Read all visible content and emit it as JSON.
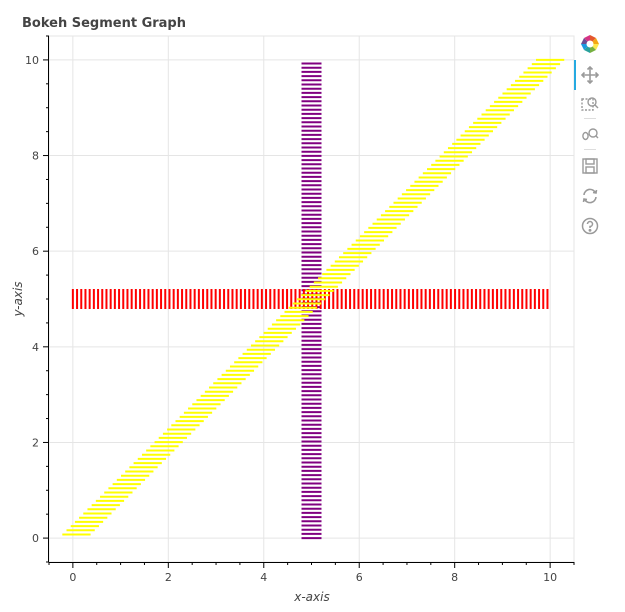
{
  "chart_data": {
    "type": "segment",
    "title": "Bokeh Segment Graph",
    "xlabel": "x-axis",
    "ylabel": "y-axis",
    "xlim": [
      -0.5,
      10.5
    ],
    "ylim": [
      -0.5,
      10.5
    ],
    "xticks": [
      0,
      2,
      4,
      6,
      8,
      10
    ],
    "yticks": [
      0,
      2,
      4,
      6,
      8,
      10
    ],
    "grid": true,
    "series": [
      {
        "x0": 5,
        "y0": 0,
        "x1": 5,
        "y1": 10,
        "color": "#800080",
        "hatch": "horizontal"
      },
      {
        "x0": 0,
        "y0": 5,
        "x1": 10,
        "y1": 5,
        "color": "#ff0000",
        "hatch": "vertical"
      },
      {
        "x0": 0,
        "y0": 0,
        "x1": 10,
        "y1": 10,
        "color": "#ffff00",
        "hatch": "diagonal"
      }
    ]
  },
  "toolbar": {
    "tools": [
      {
        "name": "bokeh-logo-icon"
      },
      {
        "name": "pan-icon"
      },
      {
        "name": "box-zoom-icon"
      },
      {
        "name": "wheel-zoom-icon"
      },
      {
        "name": "save-icon"
      },
      {
        "name": "reset-icon"
      },
      {
        "name": "help-icon"
      }
    ]
  }
}
